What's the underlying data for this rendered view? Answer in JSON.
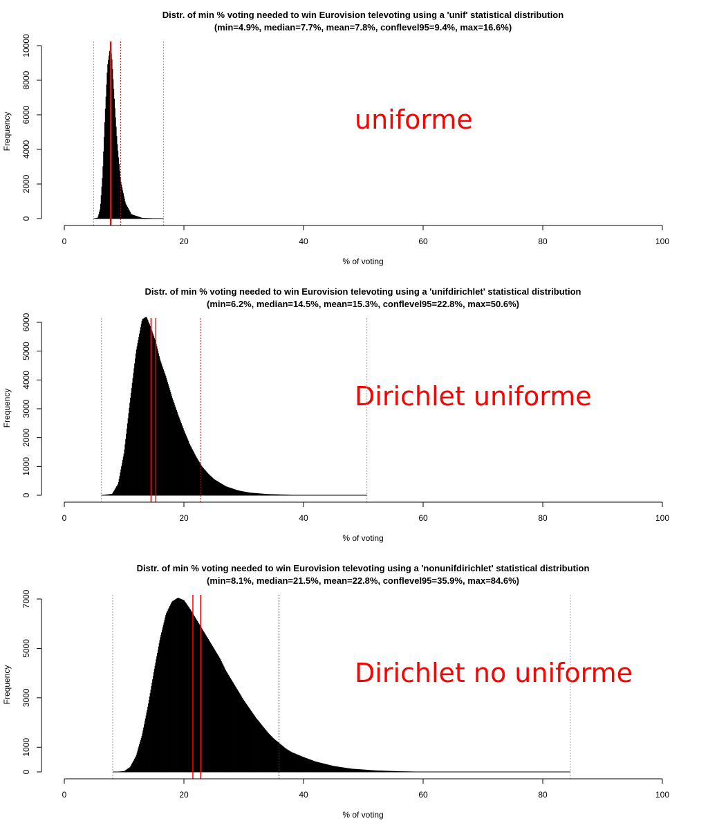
{
  "chart_data": [
    {
      "type": "bar",
      "title": "Distr. of min % voting needed to win Eurovision televoting using a 'unif' statistical distribution",
      "subtitle": "(min=4.9%, median=7.7%, mean=7.8%, conflevel95=9.4%, max=16.6%)",
      "xlabel": "% of voting",
      "ylabel": "Frequency",
      "annotation": "uniforme",
      "xlim": [
        0,
        100
      ],
      "ylim": [
        0,
        10000
      ],
      "xticks": [
        0,
        20,
        40,
        60,
        80,
        100
      ],
      "yticks": [
        0,
        2000,
        4000,
        6000,
        8000,
        10000
      ],
      "stats": {
        "min": 4.9,
        "median": 7.7,
        "mean": 7.8,
        "conflevel95": 9.4,
        "max": 16.6
      },
      "curve": [
        [
          4.9,
          0
        ],
        [
          5.6,
          60
        ],
        [
          6.0,
          600
        ],
        [
          6.4,
          2600
        ],
        [
          6.8,
          6000
        ],
        [
          7.2,
          8800
        ],
        [
          7.6,
          9800
        ],
        [
          7.9,
          9500
        ],
        [
          8.3,
          7200
        ],
        [
          8.8,
          4500
        ],
        [
          9.4,
          2200
        ],
        [
          10.2,
          900
        ],
        [
          11.2,
          250
        ],
        [
          13.0,
          40
        ],
        [
          16.6,
          0
        ]
      ],
      "colors": {
        "bars": "#000000",
        "median_mean": "#ff0000",
        "conflevel": "#cc0000",
        "min_max": "#999999",
        "annotation": "#ff0000"
      }
    },
    {
      "type": "bar",
      "title": "Distr. of min % voting needed to win Eurovision televoting using a 'unifdirichlet' statistical distribution",
      "subtitle": "(min=6.2%, median=14.5%, mean=15.3%, conflevel95=22.8%, max=50.6%)",
      "xlabel": "% of voting",
      "ylabel": "Frequency",
      "annotation": "Dirichlet uniforme",
      "xlim": [
        0,
        100
      ],
      "ylim": [
        0,
        6000
      ],
      "xticks": [
        0,
        20,
        40,
        60,
        80,
        100
      ],
      "yticks": [
        0,
        1000,
        2000,
        3000,
        4000,
        5000,
        6000
      ],
      "stats": {
        "min": 6.2,
        "median": 14.5,
        "mean": 15.3,
        "conflevel95": 22.8,
        "max": 50.6
      },
      "curve": [
        [
          6.2,
          0
        ],
        [
          8,
          50
        ],
        [
          9,
          400
        ],
        [
          10,
          1500
        ],
        [
          11,
          3300
        ],
        [
          12,
          5000
        ],
        [
          13,
          6100
        ],
        [
          13.7,
          6200
        ],
        [
          14.5,
          5800
        ],
        [
          15.3,
          5300
        ],
        [
          16,
          4700
        ],
        [
          17,
          4100
        ],
        [
          18,
          3400
        ],
        [
          19,
          2800
        ],
        [
          20,
          2250
        ],
        [
          21,
          1750
        ],
        [
          22,
          1350
        ],
        [
          23,
          1000
        ],
        [
          24,
          760
        ],
        [
          25,
          560
        ],
        [
          27,
          310
        ],
        [
          29,
          170
        ],
        [
          31,
          90
        ],
        [
          34,
          40
        ],
        [
          38,
          12
        ],
        [
          42,
          4
        ],
        [
          50.6,
          0
        ]
      ],
      "colors": {
        "bars": "#000000",
        "median_mean": "#ff0000",
        "conflevel": "#cc0000",
        "min_max": "#999999",
        "annotation": "#ff0000"
      }
    },
    {
      "type": "bar",
      "title": "Distr. of min % voting needed to win Eurovision televoting using a 'nonunifdirichlet' statistical distribution",
      "subtitle": "(min=8.1%, median=21.5%, mean=22.8%, conflevel95=35.9%, max=84.6%)",
      "xlabel": "% of voting",
      "ylabel": "Frequency",
      "annotation": "Dirichlet no uniforme",
      "xlim": [
        0,
        100
      ],
      "ylim": [
        0,
        7000
      ],
      "xticks": [
        0,
        20,
        40,
        60,
        80,
        100
      ],
      "yticks": [
        0,
        1000,
        3000,
        5000,
        7000
      ],
      "stats": {
        "min": 8.1,
        "median": 21.5,
        "mean": 22.8,
        "conflevel95": 35.9,
        "max": 84.6
      },
      "curve": [
        [
          8.1,
          0
        ],
        [
          10,
          30
        ],
        [
          11,
          200
        ],
        [
          12,
          650
        ],
        [
          13,
          1500
        ],
        [
          14,
          2700
        ],
        [
          15,
          4100
        ],
        [
          16,
          5400
        ],
        [
          17,
          6400
        ],
        [
          18,
          6900
        ],
        [
          19,
          7050
        ],
        [
          20,
          6950
        ],
        [
          21,
          6600
        ],
        [
          22,
          6200
        ],
        [
          23,
          5800
        ],
        [
          24,
          5400
        ],
        [
          25,
          5000
        ],
        [
          26,
          4600
        ],
        [
          27,
          4100
        ],
        [
          28,
          3700
        ],
        [
          29,
          3300
        ],
        [
          30,
          2900
        ],
        [
          31,
          2550
        ],
        [
          32,
          2200
        ],
        [
          33,
          1900
        ],
        [
          34,
          1600
        ],
        [
          35,
          1350
        ],
        [
          36,
          1150
        ],
        [
          37,
          950
        ],
        [
          38,
          800
        ],
        [
          40,
          600
        ],
        [
          42,
          420
        ],
        [
          45,
          240
        ],
        [
          48,
          130
        ],
        [
          52,
          60
        ],
        [
          56,
          25
        ],
        [
          60,
          8
        ],
        [
          70,
          2
        ],
        [
          84.6,
          0
        ]
      ],
      "colors": {
        "bars": "#000000",
        "median_mean": "#ff0000",
        "conflevel": "#cc0000",
        "min_max": "#999999",
        "annotation": "#ff0000"
      }
    }
  ]
}
